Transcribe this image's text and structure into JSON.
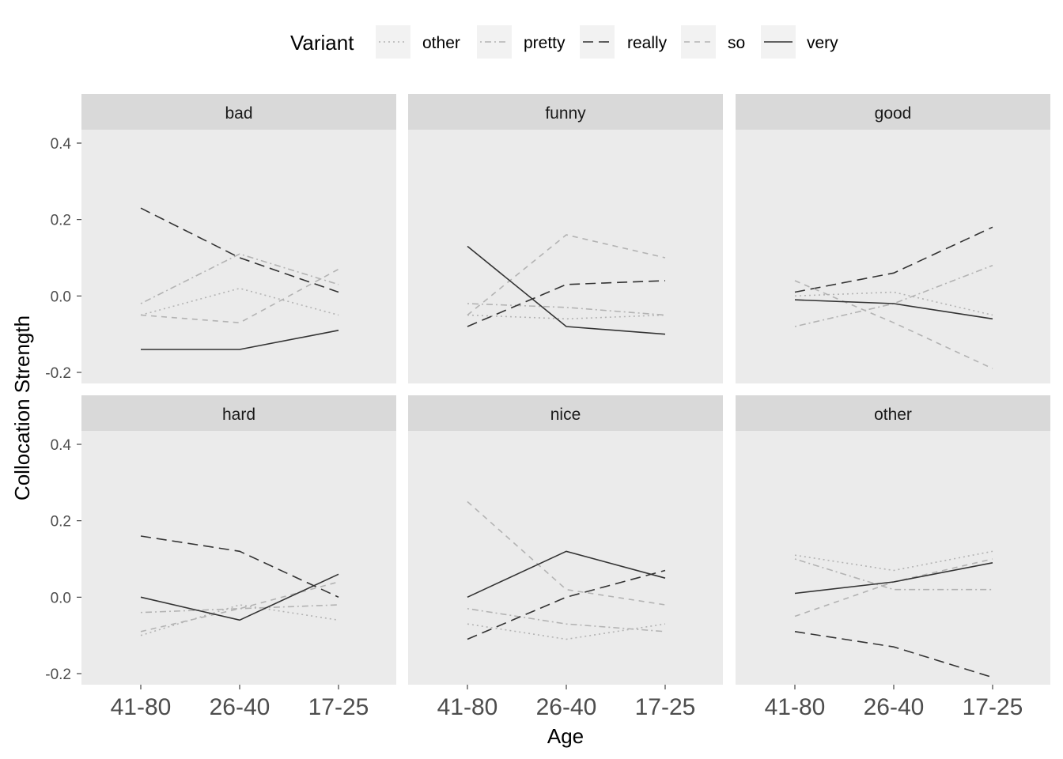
{
  "chart_data": {
    "type": "line",
    "facet_var": "adjective",
    "xlabel": "Age",
    "ylabel": "Collocation Strength",
    "categories": [
      "41-80",
      "26-40",
      "17-25"
    ],
    "ylim": [
      -0.225,
      0.4
    ],
    "yticks": [
      0.4,
      0.2,
      0.0,
      -0.2
    ],
    "ytick_labels": [
      "0.4",
      "0.2",
      "0.0",
      "-0.2"
    ],
    "grid": false,
    "legend": {
      "title": "Variant",
      "position": "top",
      "entries": [
        {
          "name": "other",
          "color": "#b3b3b3",
          "dash": "dotted"
        },
        {
          "name": "pretty",
          "color": "#b3b3b3",
          "dash": "dotdash"
        },
        {
          "name": "really",
          "color": "#333333",
          "dash": "longdash"
        },
        {
          "name": "so",
          "color": "#b3b3b3",
          "dash": "dashed"
        },
        {
          "name": "very",
          "color": "#333333",
          "dash": "solid"
        }
      ]
    },
    "panels": [
      {
        "title": "bad",
        "series": [
          {
            "name": "other",
            "values": [
              -0.05,
              0.02,
              -0.05
            ]
          },
          {
            "name": "pretty",
            "values": [
              -0.02,
              0.11,
              0.03
            ]
          },
          {
            "name": "really",
            "values": [
              0.23,
              0.1,
              0.01
            ]
          },
          {
            "name": "so",
            "values": [
              -0.05,
              -0.07,
              0.07
            ]
          },
          {
            "name": "very",
            "values": [
              -0.14,
              -0.14,
              -0.09
            ]
          }
        ]
      },
      {
        "title": "funny",
        "series": [
          {
            "name": "other",
            "values": [
              -0.05,
              -0.06,
              -0.05
            ]
          },
          {
            "name": "pretty",
            "values": [
              -0.02,
              -0.03,
              -0.05
            ]
          },
          {
            "name": "really",
            "values": [
              -0.08,
              0.03,
              0.04
            ]
          },
          {
            "name": "so",
            "values": [
              -0.05,
              0.16,
              0.1
            ]
          },
          {
            "name": "very",
            "values": [
              0.13,
              -0.08,
              -0.1
            ]
          }
        ]
      },
      {
        "title": "good",
        "series": [
          {
            "name": "other",
            "values": [
              0.0,
              0.01,
              -0.05
            ]
          },
          {
            "name": "pretty",
            "values": [
              -0.08,
              -0.02,
              0.08
            ]
          },
          {
            "name": "really",
            "values": [
              0.01,
              0.06,
              0.18
            ]
          },
          {
            "name": "so",
            "values": [
              0.04,
              -0.07,
              -0.19
            ]
          },
          {
            "name": "very",
            "values": [
              -0.01,
              -0.02,
              -0.06
            ]
          }
        ]
      },
      {
        "title": "hard",
        "series": [
          {
            "name": "other",
            "values": [
              -0.1,
              -0.02,
              -0.06
            ]
          },
          {
            "name": "pretty",
            "values": [
              -0.04,
              -0.03,
              -0.02
            ]
          },
          {
            "name": "really",
            "values": [
              0.16,
              0.12,
              0.0
            ]
          },
          {
            "name": "so",
            "values": [
              -0.09,
              -0.03,
              0.04
            ]
          },
          {
            "name": "very",
            "values": [
              0.0,
              -0.06,
              0.06
            ]
          }
        ]
      },
      {
        "title": "nice",
        "series": [
          {
            "name": "other",
            "values": [
              -0.07,
              -0.11,
              -0.07
            ]
          },
          {
            "name": "pretty",
            "values": [
              -0.03,
              -0.07,
              -0.09
            ]
          },
          {
            "name": "really",
            "values": [
              -0.11,
              0.0,
              0.07
            ]
          },
          {
            "name": "so",
            "values": [
              0.25,
              0.02,
              -0.02
            ]
          },
          {
            "name": "very",
            "values": [
              0.0,
              0.12,
              0.05
            ]
          }
        ]
      },
      {
        "title": "other",
        "series": [
          {
            "name": "other",
            "values": [
              0.11,
              0.07,
              0.12
            ]
          },
          {
            "name": "pretty",
            "values": [
              0.1,
              0.02,
              0.02
            ]
          },
          {
            "name": "really",
            "values": [
              -0.09,
              -0.13,
              -0.21
            ]
          },
          {
            "name": "so",
            "values": [
              -0.05,
              0.04,
              0.1
            ]
          },
          {
            "name": "very",
            "values": [
              0.01,
              0.04,
              0.09
            ]
          }
        ]
      }
    ]
  }
}
